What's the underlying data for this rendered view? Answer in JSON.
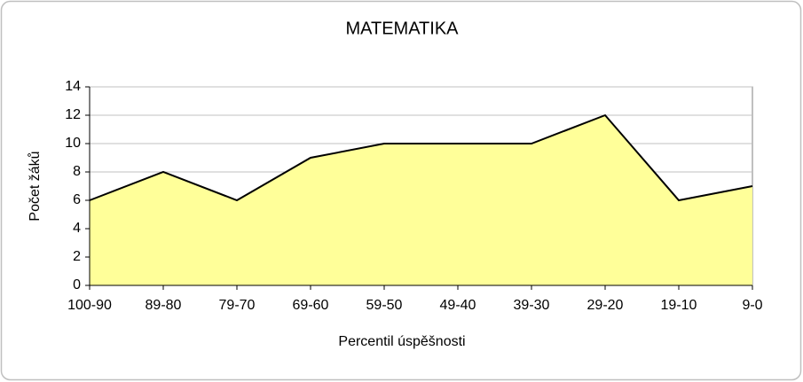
{
  "chart_data": {
    "type": "area",
    "title": "MATEMATIKA",
    "x_label": "Percentil úspěšnosti",
    "y_label": "Počet žáků",
    "categories": [
      "100-90",
      "89-80",
      "79-70",
      "69-60",
      "59-50",
      "49-40",
      "39-30",
      "29-20",
      "19-10",
      "9-0"
    ],
    "values": [
      6,
      8,
      6,
      9,
      10,
      10,
      10,
      12,
      6,
      7
    ],
    "color": "#ffff99",
    "line_color": "#000000",
    "ylim": [
      0,
      14
    ],
    "yticks": [
      0,
      2,
      4,
      6,
      8,
      10,
      12,
      14
    ],
    "grid": true
  }
}
